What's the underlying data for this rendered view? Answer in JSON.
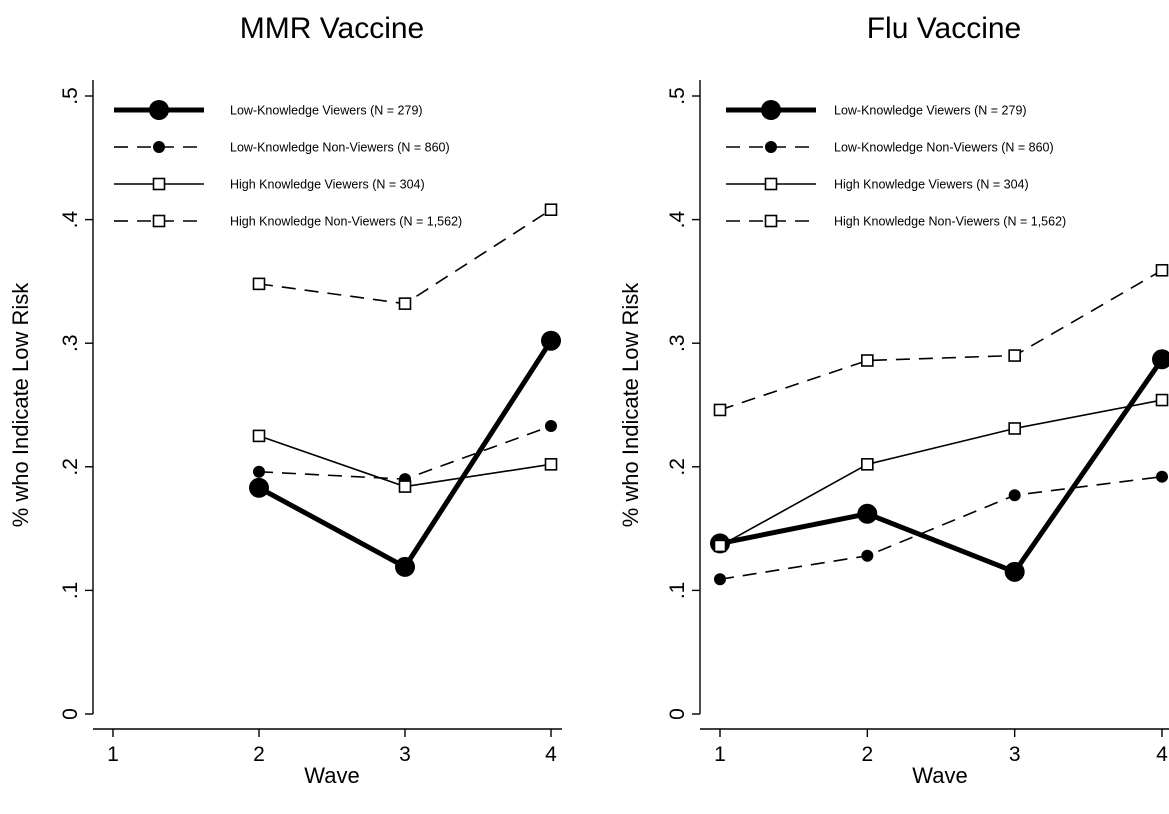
{
  "chart_data": [
    {
      "type": "line",
      "title": "MMR Vaccine",
      "xlabel": "Wave",
      "ylabel": "% who Indicate Low Risk",
      "x_ticks": [
        "1",
        "2",
        "3",
        "4"
      ],
      "y_ticks": [
        "0",
        ".1",
        ".2",
        ".3",
        ".4",
        ".5"
      ],
      "xlim": [
        1,
        4
      ],
      "ylim": [
        0,
        0.5
      ],
      "legend_position": "top-left",
      "series": [
        {
          "name": "Low-Knowledge Viewers (N = 279)",
          "style": "thick-solid-filled-circle",
          "x": [
            2,
            3,
            4
          ],
          "y": [
            0.183,
            0.119,
            0.302
          ]
        },
        {
          "name": "Low-Knowledge Non-Viewers (N = 860)",
          "style": "dashed-filled-circle",
          "x": [
            2,
            3,
            4
          ],
          "y": [
            0.196,
            0.19,
            0.233
          ]
        },
        {
          "name": "High Knowledge Viewers (N = 304)",
          "style": "solid-hollow-square",
          "x": [
            2,
            3,
            4
          ],
          "y": [
            0.225,
            0.184,
            0.202
          ]
        },
        {
          "name": "High Knowledge Non-Viewers (N = 1,562)",
          "style": "dashed-hollow-square",
          "x": [
            2,
            3,
            4
          ],
          "y": [
            0.348,
            0.332,
            0.408
          ]
        }
      ]
    },
    {
      "type": "line",
      "title": "Flu Vaccine",
      "xlabel": "Wave",
      "ylabel": "% who Indicate Low Risk",
      "x_ticks": [
        "1",
        "2",
        "3",
        "4"
      ],
      "y_ticks": [
        "0",
        ".1",
        ".2",
        ".3",
        ".4",
        ".5"
      ],
      "xlim": [
        1,
        4
      ],
      "ylim": [
        0,
        0.5
      ],
      "legend_position": "top-left",
      "series": [
        {
          "name": "Low-Knowledge Viewers (N = 279)",
          "style": "thick-solid-filled-circle",
          "x": [
            1,
            2,
            3,
            4
          ],
          "y": [
            0.138,
            0.162,
            0.115,
            0.287
          ]
        },
        {
          "name": "Low-Knowledge Non-Viewers (N = 860)",
          "style": "dashed-filled-circle",
          "x": [
            1,
            2,
            3,
            4
          ],
          "y": [
            0.109,
            0.128,
            0.177,
            0.192
          ]
        },
        {
          "name": "High Knowledge Viewers (N = 304)",
          "style": "solid-hollow-square",
          "x": [
            1,
            2,
            3,
            4
          ],
          "y": [
            0.136,
            0.202,
            0.231,
            0.254
          ]
        },
        {
          "name": "High Knowledge Non-Viewers (N = 1,562)",
          "style": "dashed-hollow-square",
          "x": [
            1,
            2,
            3,
            4
          ],
          "y": [
            0.246,
            0.286,
            0.29,
            0.359
          ]
        }
      ]
    }
  ]
}
